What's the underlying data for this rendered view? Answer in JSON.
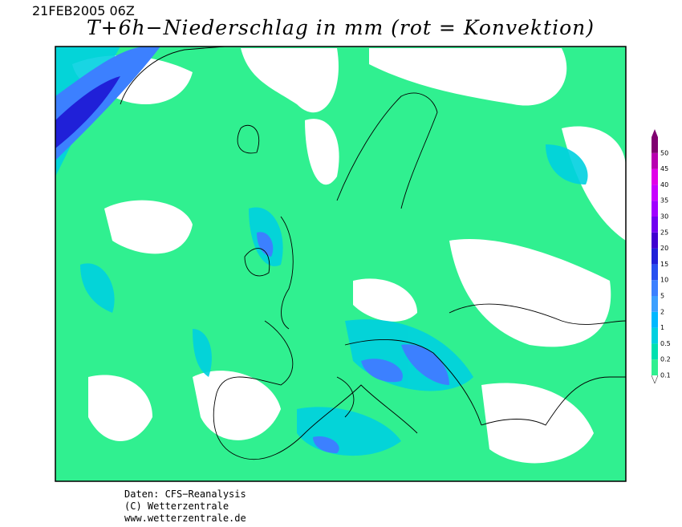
{
  "header": {
    "date": "21FEB2005 06Z",
    "title": "T+6h−Niederschlag in mm (rot = Konvektion)"
  },
  "legend": {
    "levels": [
      0.1,
      0.2,
      0.5,
      1,
      2,
      5,
      10,
      15,
      20,
      25,
      30,
      35,
      40,
      45,
      50
    ],
    "colors": [
      "#30f090",
      "#00e0b0",
      "#00d0e0",
      "#00b8ff",
      "#3ca0ff",
      "#3c80ff",
      "#2850f0",
      "#2020d8",
      "#4000d0",
      "#7000f0",
      "#a000ff",
      "#c800ff",
      "#e000e8",
      "#b800b0",
      "#800070"
    ]
  },
  "footer": {
    "lines": [
      "Daten: CFS−Reanalysis",
      "(C) Wetterzentrale",
      "www.wetterzentrale.de"
    ]
  }
}
